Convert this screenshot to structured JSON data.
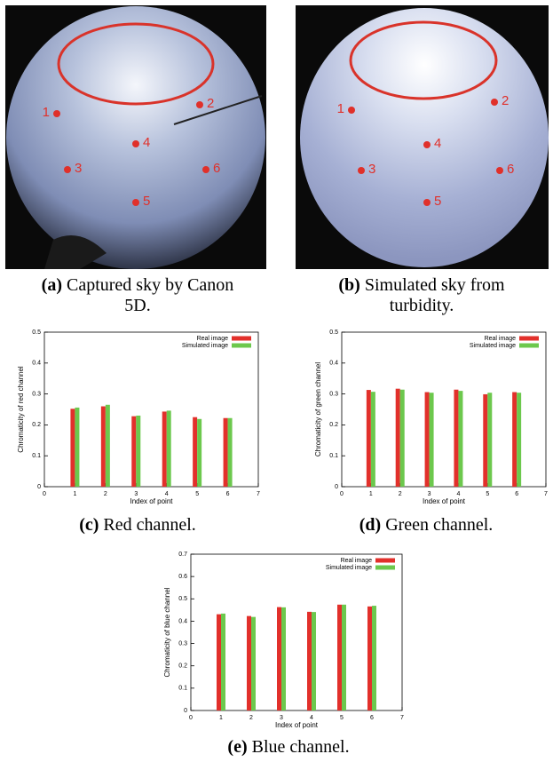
{
  "images": [
    {
      "caption_label": "(a)",
      "caption_text": "Captured sky by Canon 5D.",
      "point_labels": [
        "1",
        "2",
        "3",
        "4",
        "5",
        "6"
      ]
    },
    {
      "caption_label": "(b)",
      "caption_text": "Simulated sky from turbidity.",
      "point_labels": [
        "1",
        "2",
        "3",
        "4",
        "5",
        "6"
      ]
    }
  ],
  "captions": [
    {
      "label": "(c)",
      "text": "Red channel."
    },
    {
      "label": "(d)",
      "text": "Green channel."
    },
    {
      "label": "(e)",
      "text": "Blue channel."
    }
  ],
  "chart_data": [
    {
      "type": "bar",
      "x_label": "Index of point",
      "y_label": "Chromaticity of red channel",
      "x": [
        1,
        2,
        3,
        4,
        5,
        6
      ],
      "xlim": [
        0,
        7
      ],
      "xticks": [
        0,
        1,
        2,
        3,
        4,
        5,
        6,
        7
      ],
      "ylim": [
        0,
        0.5
      ],
      "yticks": [
        0,
        0.1,
        0.2,
        0.3,
        0.4,
        0.5
      ],
      "legend": "upper right",
      "series": [
        {
          "name": "Real image",
          "color": "#e2302b",
          "values": [
            0.252,
            0.26,
            0.228,
            0.243,
            0.225,
            0.222
          ]
        },
        {
          "name": "Simulated image",
          "color": "#6cc84d",
          "values": [
            0.256,
            0.265,
            0.23,
            0.246,
            0.219,
            0.222
          ]
        }
      ]
    },
    {
      "type": "bar",
      "x_label": "Index of point",
      "y_label": "Chromaticity of green channel",
      "x": [
        1,
        2,
        3,
        4,
        5,
        6
      ],
      "xlim": [
        0,
        7
      ],
      "xticks": [
        0,
        1,
        2,
        3,
        4,
        5,
        6,
        7
      ],
      "ylim": [
        0,
        0.5
      ],
      "yticks": [
        0,
        0.1,
        0.2,
        0.3,
        0.4,
        0.5
      ],
      "legend": "upper right",
      "series": [
        {
          "name": "Real image",
          "color": "#e2302b",
          "values": [
            0.313,
            0.317,
            0.306,
            0.314,
            0.299,
            0.306
          ]
        },
        {
          "name": "Simulated image",
          "color": "#6cc84d",
          "values": [
            0.307,
            0.314,
            0.304,
            0.31,
            0.304,
            0.304
          ]
        }
      ]
    },
    {
      "type": "bar",
      "x_label": "Index of point",
      "y_label": "Chromaticity of blue channel",
      "x": [
        1,
        2,
        3,
        4,
        5,
        6
      ],
      "xlim": [
        0,
        7
      ],
      "xticks": [
        0,
        1,
        2,
        3,
        4,
        5,
        6,
        7
      ],
      "ylim": [
        0,
        0.7
      ],
      "yticks": [
        0,
        0.1,
        0.2,
        0.3,
        0.4,
        0.5,
        0.6,
        0.7
      ],
      "legend": "upper right",
      "series": [
        {
          "name": "Real image",
          "color": "#e2302b",
          "values": [
            0.431,
            0.423,
            0.463,
            0.442,
            0.474,
            0.466
          ]
        },
        {
          "name": "Simulated image",
          "color": "#6cc84d",
          "values": [
            0.434,
            0.419,
            0.462,
            0.441,
            0.474,
            0.469
          ]
        }
      ]
    }
  ]
}
